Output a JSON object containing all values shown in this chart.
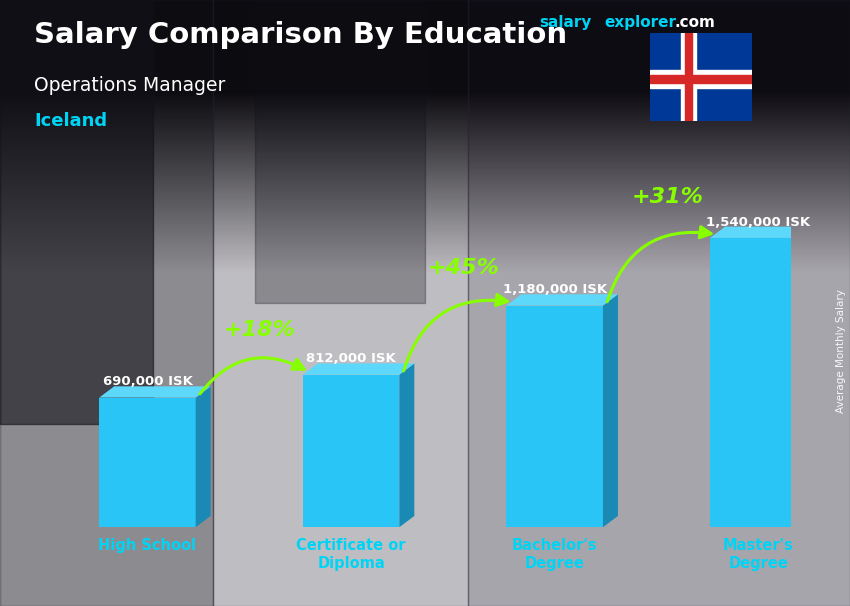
{
  "title_main": "Salary Comparison By Education",
  "title_sub": "Operations Manager",
  "title_country": "Iceland",
  "watermark_salary": "salary",
  "watermark_explorer": "explorer",
  "watermark_com": ".com",
  "ylabel_rotated": "Average Monthly Salary",
  "categories": [
    "High School",
    "Certificate or\nDiploma",
    "Bachelor's\nDegree",
    "Master's\nDegree"
  ],
  "values": [
    690000,
    812000,
    1180000,
    1540000
  ],
  "value_labels": [
    "690,000 ISK",
    "812,000 ISK",
    "1,180,000 ISK",
    "1,540,000 ISK"
  ],
  "pct_labels": [
    "+18%",
    "+45%",
    "+31%"
  ],
  "bar_front_color": "#29c5f6",
  "bar_side_color": "#1a8ab5",
  "bar_top_color": "#5dd8fa",
  "bg_color_top": "#4a4a5a",
  "bg_color_bot": "#2a2a35",
  "title_color": "#ffffff",
  "subtitle_color": "#ffffff",
  "country_color": "#00d4f5",
  "value_label_color": "#ffffff",
  "pct_label_color": "#88ff00",
  "arrow_color": "#88ff00",
  "xlabel_color": "#00d4f5",
  "watermark_color_salary": "#00d4f5",
  "watermark_color_explorer": "#00d4f5",
  "watermark_color_com": "#ffffff",
  "bar_width": 0.45,
  "bar_gap": 0.95,
  "ylim": [
    0,
    2000000
  ],
  "flag_blue": "#003897",
  "flag_red": "#d72828",
  "flag_white": "#ffffff"
}
